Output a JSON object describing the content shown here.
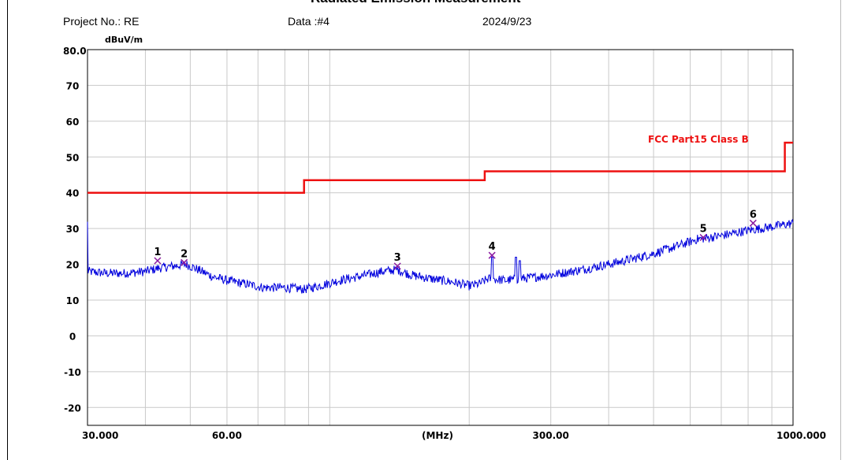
{
  "header": {
    "title": "Radiated Emission Measurement",
    "project": "Project No.: RE",
    "data_no": "Data :#4",
    "date": "2024/9/23"
  },
  "chart_data": {
    "type": "line",
    "y_unit_label": "dBuV/m",
    "y_top_label": "80.0",
    "x_center_label": "(MHz)",
    "xscale": "log",
    "xlim": [
      30,
      1000
    ],
    "ylim": [
      -25,
      80
    ],
    "grid": true,
    "x_tick_labels": [
      {
        "value": 30,
        "label": "30.000"
      },
      {
        "value": 60,
        "label": "60.00"
      },
      {
        "value": 300,
        "label": "300.00"
      },
      {
        "value": 1000,
        "label": "1000.000"
      }
    ],
    "y_ticks": [
      70,
      60,
      50,
      40,
      30,
      20,
      10,
      0,
      -10,
      -20
    ],
    "limit": {
      "name": "FCC Part15 Class B",
      "color": "#ee1111",
      "segments": [
        {
          "x": [
            30,
            88
          ],
          "y": 40
        },
        {
          "x": [
            88,
            216
          ],
          "y": 43.5
        },
        {
          "x": [
            216,
            960
          ],
          "y": 46
        },
        {
          "x": [
            960,
            1000
          ],
          "y": 54
        }
      ]
    },
    "trace": {
      "color": "#0000dd",
      "points": [
        [
          30,
          18
        ],
        [
          33,
          17.5
        ],
        [
          36,
          17.5
        ],
        [
          40,
          18
        ],
        [
          43,
          19
        ],
        [
          46,
          19.5
        ],
        [
          49,
          20
        ],
        [
          52,
          18.5
        ],
        [
          56,
          16.5
        ],
        [
          60,
          15.5
        ],
        [
          66,
          14.5
        ],
        [
          72,
          13.5
        ],
        [
          80,
          13.5
        ],
        [
          88,
          13
        ],
        [
          95,
          14
        ],
        [
          105,
          15.5
        ],
        [
          115,
          16.5
        ],
        [
          130,
          18
        ],
        [
          140,
          18.5
        ],
        [
          150,
          17
        ],
        [
          165,
          16
        ],
        [
          185,
          15
        ],
        [
          200,
          14
        ],
        [
          210,
          14.5
        ],
        [
          220,
          16
        ],
        [
          240,
          15.5
        ],
        [
          260,
          16
        ],
        [
          280,
          16.5
        ],
        [
          300,
          17
        ],
        [
          350,
          18.5
        ],
        [
          400,
          20
        ],
        [
          450,
          21.5
        ],
        [
          500,
          23
        ],
        [
          560,
          25
        ],
        [
          620,
          27
        ],
        [
          700,
          28
        ],
        [
          800,
          29.5
        ],
        [
          900,
          30.5
        ],
        [
          1000,
          31.5
        ]
      ],
      "spikes": [
        {
          "x": 224,
          "y": 22
        },
        {
          "x": 252,
          "y": 22
        },
        {
          "x": 257,
          "y": 21
        }
      ]
    },
    "markers": [
      {
        "label": "1",
        "x": 42.5,
        "y": 21
      },
      {
        "label": "2",
        "x": 48.5,
        "y": 20.5
      },
      {
        "label": "3",
        "x": 140,
        "y": 19.5
      },
      {
        "label": "4",
        "x": 224,
        "y": 22.5
      },
      {
        "label": "5",
        "x": 640,
        "y": 27.5
      },
      {
        "label": "6",
        "x": 820,
        "y": 31.5
      }
    ]
  }
}
